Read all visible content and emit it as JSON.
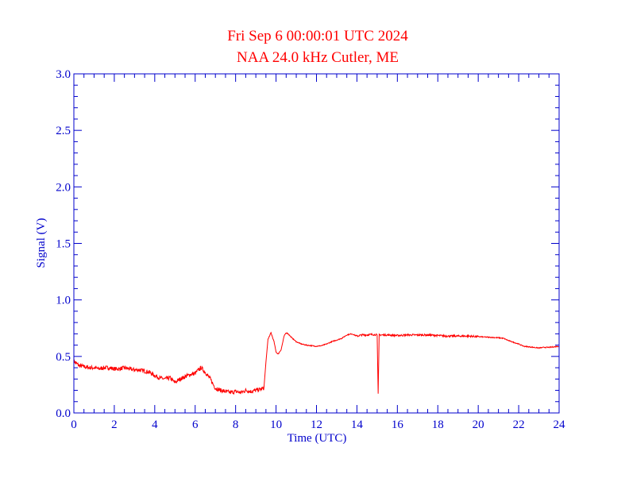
{
  "chart_data": {
    "type": "line",
    "title": "Fri Sep 6 00:00:01 UTC 2024",
    "subtitle": "NAA 24.0 kHz Cutler, ME",
    "xlabel": "Time (UTC)",
    "ylabel": "Signal (V)",
    "xlim": [
      0,
      24
    ],
    "ylim": [
      0.0,
      3.0
    ],
    "xticks": [
      0,
      2,
      4,
      6,
      8,
      10,
      12,
      14,
      16,
      18,
      20,
      22,
      24
    ],
    "xtick_labels": [
      "0",
      "2",
      "4",
      "6",
      "8",
      "10",
      "12",
      "14",
      "16",
      "18",
      "20",
      "22",
      "24"
    ],
    "xminor_step": 0.5,
    "yticks": [
      0.0,
      0.5,
      1.0,
      1.5,
      2.0,
      2.5,
      3.0
    ],
    "ytick_labels": [
      "0.0",
      "0.5",
      "1.0",
      "1.5",
      "2.0",
      "2.5",
      "3.0"
    ],
    "yminor_step": 0.1,
    "grid": false,
    "colors": {
      "series": "#ff0000",
      "axes": "#0000cc",
      "title": "#ff0000"
    },
    "series": [
      {
        "x": [
          0.0,
          0.25,
          0.5,
          0.75,
          1.0,
          1.25,
          1.5,
          1.75,
          2.0,
          2.25,
          2.5,
          2.75,
          3.0,
          3.25,
          3.5,
          3.75,
          4.0,
          4.25,
          4.5,
          4.75,
          5.0,
          5.25,
          5.5,
          5.75,
          6.0,
          6.15,
          6.3,
          6.5,
          6.75,
          6.9,
          7.0,
          7.25,
          7.5,
          7.75,
          8.0,
          8.25,
          8.5,
          8.75,
          9.0,
          9.25,
          9.4,
          9.5,
          9.6,
          9.75,
          9.9,
          10.0,
          10.1,
          10.25,
          10.4,
          10.5,
          10.6,
          10.75,
          11.0,
          11.25,
          11.5,
          11.75,
          12.0,
          12.25,
          12.5,
          12.75,
          13.0,
          13.25,
          13.5,
          13.75,
          14.0,
          14.25,
          14.5,
          14.75,
          15.0,
          15.05,
          15.1,
          15.15,
          15.25,
          15.5,
          16.0,
          16.5,
          17.0,
          17.5,
          18.0,
          18.5,
          19.0,
          19.5,
          20.0,
          20.5,
          21.0,
          21.25,
          21.5,
          21.75,
          22.0,
          22.25,
          22.5,
          22.75,
          23.0,
          23.25,
          23.5,
          23.75,
          24.0
        ],
        "y": [
          0.46,
          0.42,
          0.41,
          0.4,
          0.4,
          0.39,
          0.4,
          0.4,
          0.39,
          0.39,
          0.4,
          0.39,
          0.38,
          0.38,
          0.37,
          0.36,
          0.33,
          0.31,
          0.3,
          0.31,
          0.27,
          0.3,
          0.32,
          0.34,
          0.35,
          0.38,
          0.4,
          0.36,
          0.3,
          0.25,
          0.22,
          0.2,
          0.19,
          0.18,
          0.19,
          0.18,
          0.2,
          0.19,
          0.2,
          0.21,
          0.22,
          0.45,
          0.65,
          0.71,
          0.63,
          0.54,
          0.52,
          0.56,
          0.68,
          0.71,
          0.7,
          0.67,
          0.63,
          0.61,
          0.6,
          0.595,
          0.59,
          0.595,
          0.61,
          0.63,
          0.645,
          0.66,
          0.69,
          0.7,
          0.68,
          0.69,
          0.69,
          0.695,
          0.69,
          0.17,
          0.69,
          0.69,
          0.69,
          0.69,
          0.685,
          0.69,
          0.69,
          0.69,
          0.685,
          0.68,
          0.68,
          0.68,
          0.675,
          0.67,
          0.665,
          0.66,
          0.64,
          0.625,
          0.61,
          0.59,
          0.585,
          0.58,
          0.575,
          0.58,
          0.58,
          0.585,
          0.59
        ]
      }
    ]
  }
}
